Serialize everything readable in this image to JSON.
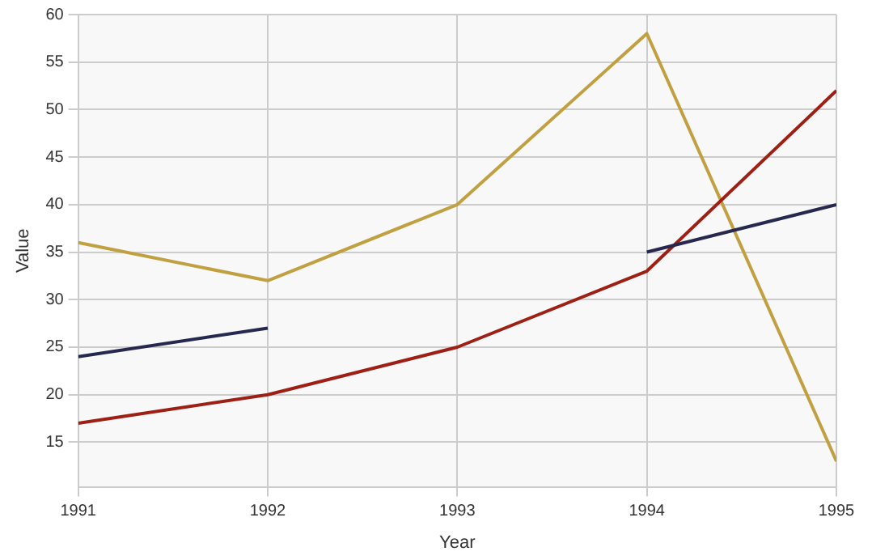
{
  "chart_data": {
    "type": "line",
    "xlabel": "Year",
    "ylabel": "Value",
    "x": [
      1991,
      1992,
      1993,
      1994,
      1995
    ],
    "xlim": [
      1991,
      1995
    ],
    "xticks": [
      1991,
      1992,
      1993,
      1994,
      1995
    ],
    "ylim": [
      10.3,
      60
    ],
    "yticks": [
      15,
      20,
      25,
      30,
      35,
      40,
      45,
      50,
      55,
      60
    ],
    "grid": true,
    "marker": "none",
    "line_style": "solid",
    "series": [
      {
        "color": "#262850",
        "values": [
          24,
          27,
          null,
          35,
          40
        ]
      },
      {
        "color": "#9e1f14",
        "values": [
          17,
          20,
          25,
          33,
          52
        ]
      },
      {
        "color": "#c0a040",
        "values": [
          36,
          32,
          40,
          58,
          13
        ]
      }
    ]
  }
}
